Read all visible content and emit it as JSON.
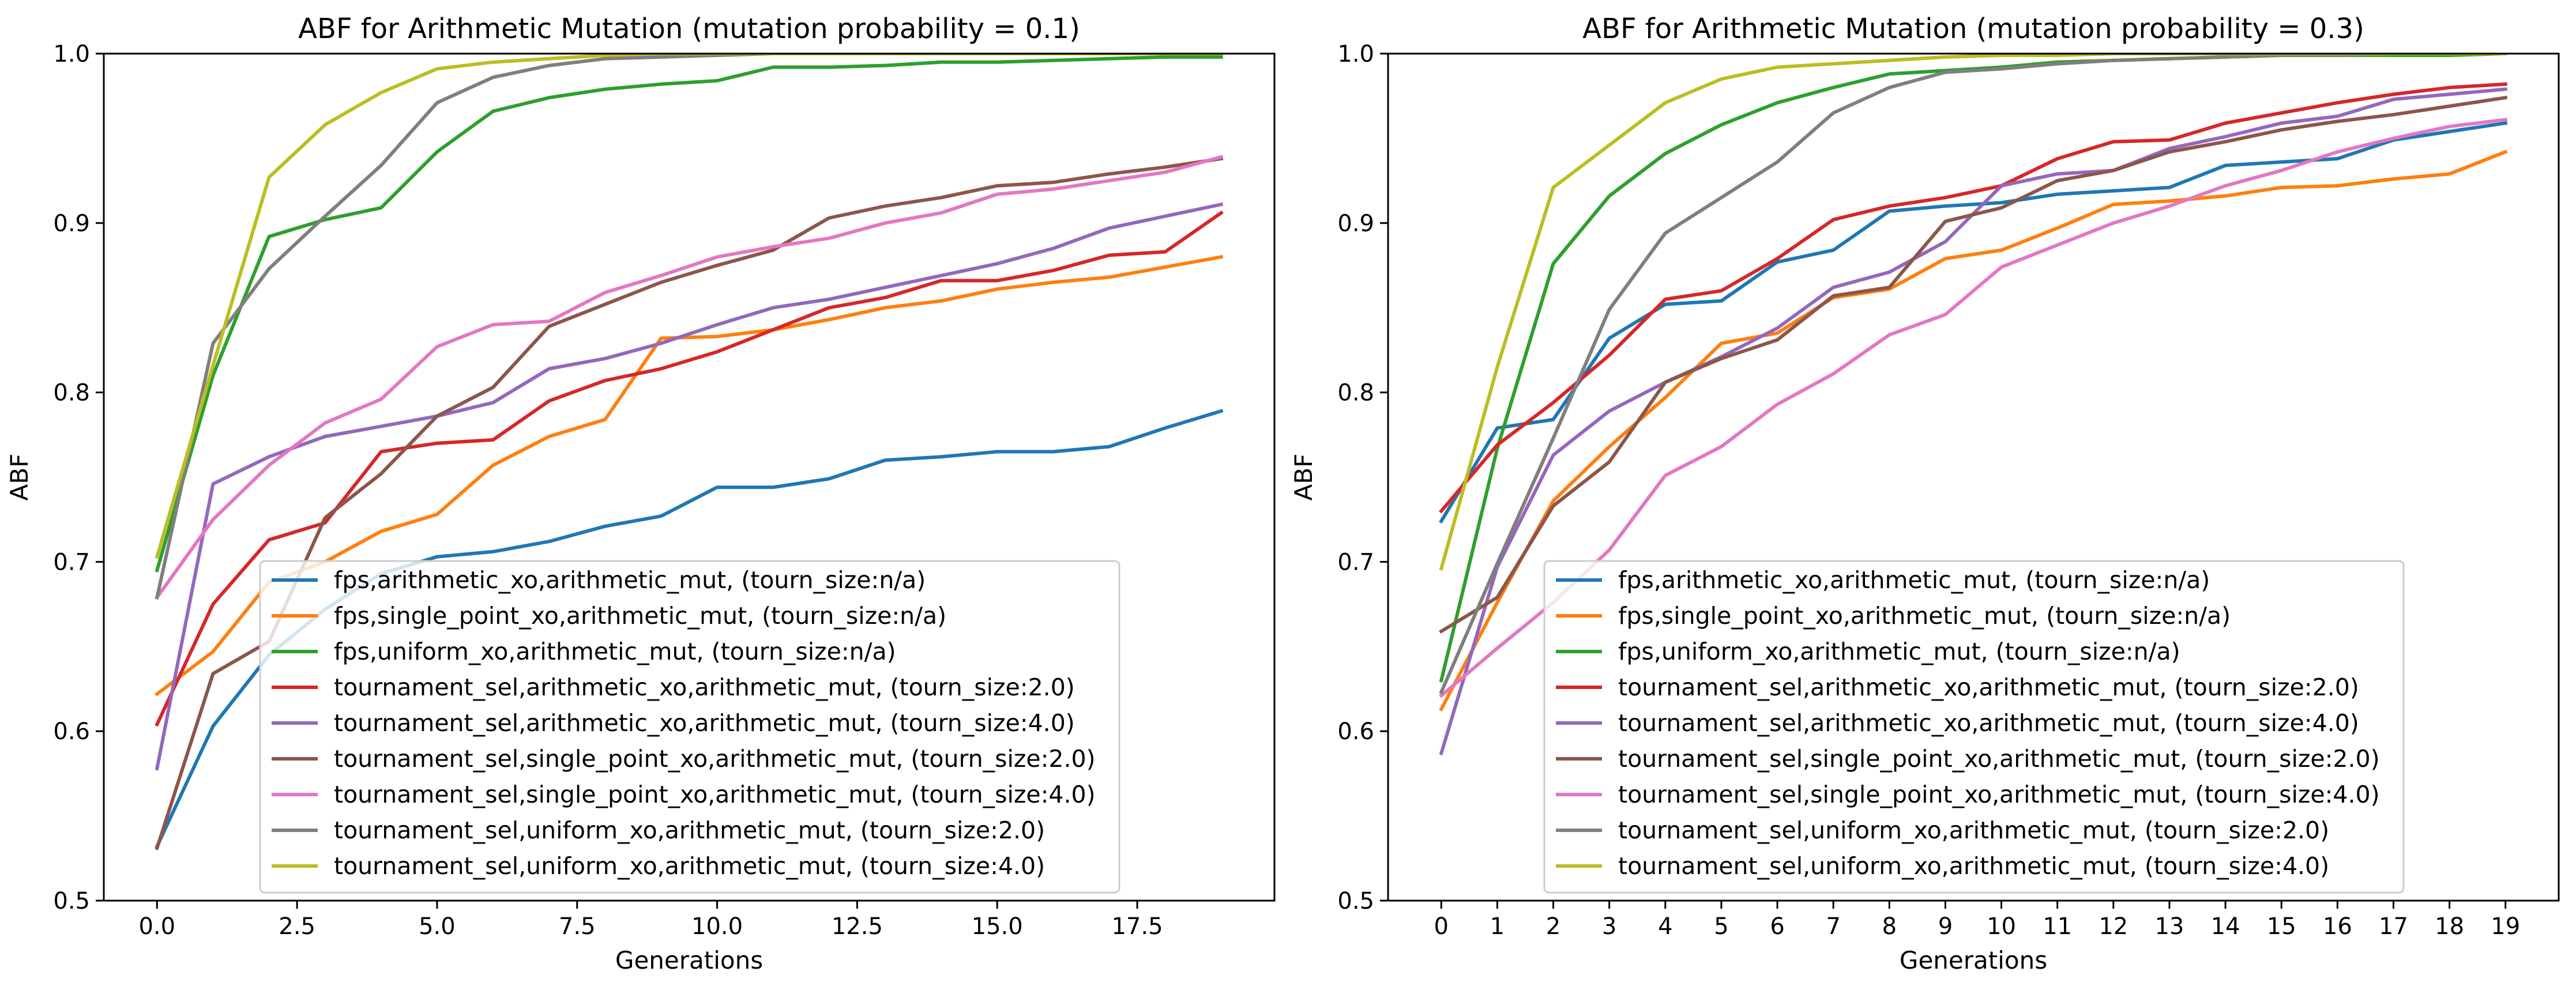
{
  "colors": [
    "#1f77b4",
    "#ff7f0e",
    "#2ca02c",
    "#d62728",
    "#9467bd",
    "#8c564b",
    "#e377c2",
    "#7f7f7f",
    "#bcbd22"
  ],
  "chart_data": [
    {
      "type": "line",
      "title": "ABF for Arithmetic Mutation (mutation probability = 0.1)",
      "xlabel": "Generations",
      "ylabel": "ABF",
      "xlim": [
        -0.95,
        19.95
      ],
      "ylim": [
        0.5,
        1.0
      ],
      "xticks": [
        0.0,
        2.5,
        5.0,
        7.5,
        10.0,
        12.5,
        15.0,
        17.5
      ],
      "xtick_labels": [
        "0.0",
        "2.5",
        "5.0",
        "7.5",
        "10.0",
        "12.5",
        "15.0",
        "17.5"
      ],
      "yticks": [
        0.5,
        0.6,
        0.7,
        0.8,
        0.9,
        1.0
      ],
      "ytick_labels": [
        "0.5",
        "0.6",
        "0.7",
        "0.8",
        "0.9",
        "1.0"
      ],
      "grid": false,
      "legend_position": "lower-center",
      "x": [
        0,
        1,
        2,
        3,
        4,
        5,
        6,
        7,
        8,
        9,
        10,
        11,
        12,
        13,
        14,
        15,
        16,
        17,
        18,
        19
      ],
      "series": [
        {
          "name": "fps,arithmetic_xo,arithmetic_mut, (tourn_size:n/a)",
          "values": [
            0.532,
            0.603,
            0.645,
            0.672,
            0.693,
            0.703,
            0.706,
            0.712,
            0.721,
            0.727,
            0.744,
            0.744,
            0.749,
            0.76,
            0.762,
            0.765,
            0.765,
            0.768,
            0.779,
            0.789
          ]
        },
        {
          "name": "fps,single_point_xo,arithmetic_mut, (tourn_size:n/a)",
          "values": [
            0.622,
            0.647,
            0.688,
            0.7,
            0.718,
            0.728,
            0.757,
            0.774,
            0.784,
            0.832,
            0.833,
            0.837,
            0.843,
            0.85,
            0.854,
            0.861,
            0.865,
            0.868,
            0.874,
            0.88
          ]
        },
        {
          "name": "fps,uniform_xo,arithmetic_mut, (tourn_size:n/a)",
          "values": [
            0.695,
            0.81,
            0.892,
            0.902,
            0.909,
            0.942,
            0.966,
            0.974,
            0.979,
            0.982,
            0.984,
            0.992,
            0.992,
            0.993,
            0.995,
            0.995,
            0.996,
            0.997,
            0.998,
            0.998
          ]
        },
        {
          "name": "tournament_sel,arithmetic_xo,arithmetic_mut, (tourn_size:2.0)",
          "values": [
            0.604,
            0.675,
            0.713,
            0.723,
            0.765,
            0.77,
            0.772,
            0.795,
            0.807,
            0.814,
            0.824,
            0.837,
            0.85,
            0.856,
            0.866,
            0.866,
            0.872,
            0.881,
            0.883,
            0.906
          ]
        },
        {
          "name": "tournament_sel,arithmetic_xo,arithmetic_mut, (tourn_size:4.0)",
          "values": [
            0.578,
            0.746,
            0.762,
            0.774,
            0.78,
            0.786,
            0.794,
            0.814,
            0.82,
            0.829,
            0.84,
            0.85,
            0.855,
            0.862,
            0.869,
            0.876,
            0.885,
            0.897,
            0.904,
            0.911
          ]
        },
        {
          "name": "tournament_sel,single_point_xo,arithmetic_mut, (tourn_size:2.0)",
          "values": [
            0.531,
            0.634,
            0.653,
            0.726,
            0.752,
            0.786,
            0.803,
            0.839,
            0.852,
            0.865,
            0.875,
            0.884,
            0.903,
            0.91,
            0.915,
            0.922,
            0.924,
            0.929,
            0.933,
            0.938
          ]
        },
        {
          "name": "tournament_sel,single_point_xo,arithmetic_mut, (tourn_size:4.0)",
          "values": [
            0.679,
            0.725,
            0.757,
            0.782,
            0.796,
            0.827,
            0.84,
            0.842,
            0.859,
            0.869,
            0.88,
            0.886,
            0.891,
            0.9,
            0.906,
            0.917,
            0.92,
            0.925,
            0.93,
            0.939
          ]
        },
        {
          "name": "tournament_sel,uniform_xo,arithmetic_mut, (tourn_size:2.0)",
          "values": [
            0.679,
            0.829,
            0.873,
            0.904,
            0.934,
            0.971,
            0.986,
            0.993,
            0.997,
            0.998,
            0.999,
            1.0,
            1.0,
            1.0,
            1.0,
            1.0,
            1.0,
            1.0,
            1.0,
            1.0
          ]
        },
        {
          "name": "tournament_sel,uniform_xo,arithmetic_mut, (tourn_size:4.0)",
          "values": [
            0.703,
            0.816,
            0.927,
            0.958,
            0.977,
            0.991,
            0.995,
            0.997,
            0.999,
            1.0,
            1.0,
            1.0,
            1.0,
            1.0,
            1.0,
            1.0,
            1.0,
            1.0,
            1.0,
            1.0
          ]
        }
      ]
    },
    {
      "type": "line",
      "title": "ABF for Arithmetic Mutation (mutation probability = 0.3)",
      "xlabel": "Generations",
      "ylabel": "ABF",
      "xlim": [
        -0.95,
        19.95
      ],
      "ylim": [
        0.5,
        1.0
      ],
      "xticks": [
        0,
        1,
        2,
        3,
        4,
        5,
        6,
        7,
        8,
        9,
        10,
        11,
        12,
        13,
        14,
        15,
        16,
        17,
        18,
        19
      ],
      "xtick_labels": [
        "0",
        "1",
        "2",
        "3",
        "4",
        "5",
        "6",
        "7",
        "8",
        "9",
        "10",
        "11",
        "12",
        "13",
        "14",
        "15",
        "16",
        "17",
        "18",
        "19"
      ],
      "yticks": [
        0.5,
        0.6,
        0.7,
        0.8,
        0.9,
        1.0
      ],
      "ytick_labels": [
        "0.5",
        "0.6",
        "0.7",
        "0.8",
        "0.9",
        "1.0"
      ],
      "grid": false,
      "legend_position": "lower-center",
      "x": [
        0,
        1,
        2,
        3,
        4,
        5,
        6,
        7,
        8,
        9,
        10,
        11,
        12,
        13,
        14,
        15,
        16,
        17,
        18,
        19
      ],
      "series": [
        {
          "name": "fps,arithmetic_xo,arithmetic_mut, (tourn_size:n/a)",
          "values": [
            0.724,
            0.779,
            0.784,
            0.832,
            0.852,
            0.854,
            0.877,
            0.884,
            0.907,
            0.91,
            0.912,
            0.917,
            0.919,
            0.921,
            0.934,
            0.936,
            0.938,
            0.949,
            0.954,
            0.959
          ]
        },
        {
          "name": "fps,single_point_xo,arithmetic_mut, (tourn_size:n/a)",
          "values": [
            0.613,
            0.676,
            0.736,
            0.768,
            0.797,
            0.829,
            0.835,
            0.856,
            0.861,
            0.879,
            0.884,
            0.897,
            0.911,
            0.913,
            0.916,
            0.921,
            0.922,
            0.926,
            0.929,
            0.942
          ]
        },
        {
          "name": "fps,uniform_xo,arithmetic_mut, (tourn_size:n/a)",
          "values": [
            0.63,
            0.767,
            0.876,
            0.916,
            0.941,
            0.958,
            0.971,
            0.98,
            0.988,
            0.99,
            0.992,
            0.995,
            0.996,
            0.997,
            0.998,
            0.999,
            0.999,
            0.999,
            0.999,
            1.0
          ]
        },
        {
          "name": "tournament_sel,arithmetic_xo,arithmetic_mut, (tourn_size:2.0)",
          "values": [
            0.73,
            0.769,
            0.794,
            0.822,
            0.855,
            0.86,
            0.879,
            0.902,
            0.91,
            0.915,
            0.922,
            0.938,
            0.948,
            0.949,
            0.959,
            0.965,
            0.971,
            0.976,
            0.98,
            0.982
          ]
        },
        {
          "name": "tournament_sel,arithmetic_xo,arithmetic_mut, (tourn_size:4.0)",
          "values": [
            0.587,
            0.697,
            0.763,
            0.789,
            0.806,
            0.821,
            0.838,
            0.862,
            0.871,
            0.889,
            0.922,
            0.929,
            0.931,
            0.944,
            0.951,
            0.959,
            0.963,
            0.973,
            0.976,
            0.979
          ]
        },
        {
          "name": "tournament_sel,single_point_xo,arithmetic_mut, (tourn_size:2.0)",
          "values": [
            0.659,
            0.679,
            0.733,
            0.759,
            0.806,
            0.82,
            0.831,
            0.857,
            0.862,
            0.901,
            0.909,
            0.925,
            0.931,
            0.942,
            0.948,
            0.955,
            0.96,
            0.964,
            0.969,
            0.974
          ]
        },
        {
          "name": "tournament_sel,single_point_xo,arithmetic_mut, (tourn_size:4.0)",
          "values": [
            0.621,
            0.649,
            0.676,
            0.707,
            0.751,
            0.768,
            0.793,
            0.811,
            0.834,
            0.846,
            0.874,
            0.887,
            0.9,
            0.91,
            0.922,
            0.931,
            0.942,
            0.95,
            0.957,
            0.961
          ]
        },
        {
          "name": "tournament_sel,uniform_xo,arithmetic_mut, (tourn_size:2.0)",
          "values": [
            0.623,
            0.699,
            0.773,
            0.849,
            0.894,
            0.915,
            0.936,
            0.965,
            0.98,
            0.989,
            0.991,
            0.994,
            0.996,
            0.997,
            0.998,
            0.999,
            0.999,
            1.0,
            1.0,
            1.0
          ]
        },
        {
          "name": "tournament_sel,uniform_xo,arithmetic_mut, (tourn_size:4.0)",
          "values": [
            0.696,
            0.815,
            0.921,
            0.946,
            0.971,
            0.985,
            0.992,
            0.994,
            0.996,
            0.998,
            0.999,
            0.999,
            1.0,
            1.0,
            1.0,
            1.0,
            1.0,
            1.0,
            1.0,
            1.0
          ]
        }
      ]
    }
  ]
}
